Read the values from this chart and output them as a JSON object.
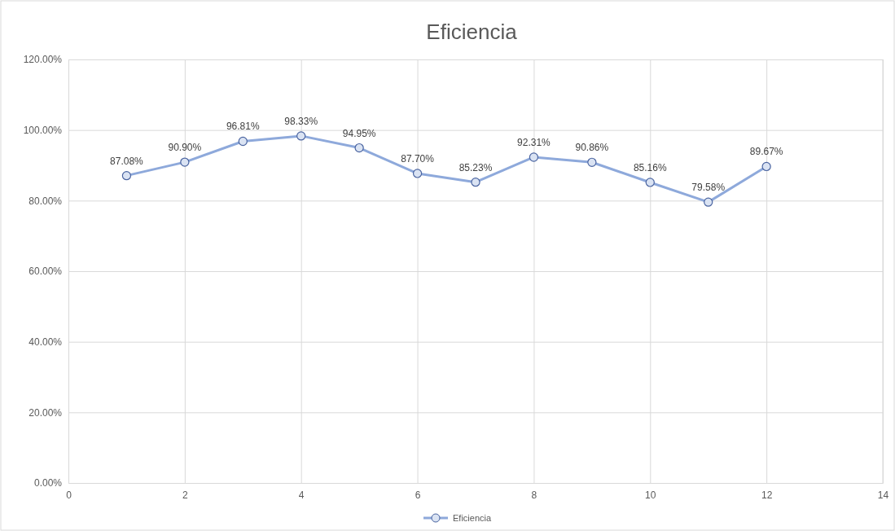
{
  "chart_data": {
    "type": "line",
    "title": "Eficiencia",
    "x": [
      1,
      2,
      3,
      4,
      5,
      6,
      7,
      8,
      9,
      10,
      11,
      12
    ],
    "series": [
      {
        "name": "Eficiencia",
        "color": "#8ea9db",
        "values": [
          87.08,
          90.9,
          96.81,
          98.33,
          94.95,
          87.7,
          85.23,
          92.31,
          90.86,
          85.16,
          79.58,
          89.67
        ],
        "value_labels": [
          "87.08%",
          "90.90%",
          "96.81%",
          "98.33%",
          "94.95%",
          "87.70%",
          "85.23%",
          "92.31%",
          "90.86%",
          "85.16%",
          "79.58%",
          "89.67%"
        ]
      }
    ],
    "xlim": [
      0,
      14
    ],
    "xticks": [
      0,
      2,
      4,
      6,
      8,
      10,
      12,
      14
    ],
    "ylim": [
      0,
      120
    ],
    "yticks": [
      {
        "value": 0,
        "label": "0.00%"
      },
      {
        "value": 20,
        "label": "20.00%"
      },
      {
        "value": 40,
        "label": "40.00%"
      },
      {
        "value": 60,
        "label": "60.00%"
      },
      {
        "value": 80,
        "label": "80.00%"
      },
      {
        "value": 100,
        "label": "100.00%"
      },
      {
        "value": 120,
        "label": "120.00%"
      }
    ],
    "grid": true,
    "legend": "bottom",
    "marker": "circle",
    "line_style": "solid"
  }
}
